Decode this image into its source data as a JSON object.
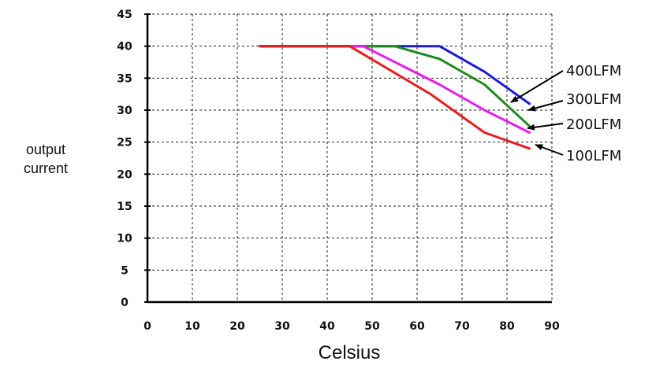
{
  "chart_data": {
    "type": "line",
    "xlabel": "Celsius",
    "ylabel": [
      "output",
      "current"
    ],
    "xlim": [
      0,
      90
    ],
    "ylim": [
      0,
      45
    ],
    "xticks": [
      0,
      10,
      20,
      30,
      40,
      50,
      60,
      70,
      80,
      90
    ],
    "yticks": [
      0,
      5,
      10,
      15,
      20,
      25,
      30,
      35,
      40,
      45
    ],
    "grid": true,
    "series": [
      {
        "name": "400LFM",
        "color": "#1a1adb",
        "x": [
          25,
          65,
          75,
          85
        ],
        "y": [
          40,
          40,
          36,
          31
        ]
      },
      {
        "name": "300LFM",
        "color": "#1f8a1f",
        "x": [
          25,
          55,
          65,
          75,
          85
        ],
        "y": [
          40,
          40,
          38,
          34,
          27.5
        ]
      },
      {
        "name": "200LFM",
        "color": "#e61ee6",
        "x": [
          25,
          48,
          65,
          75,
          85
        ],
        "y": [
          40,
          40,
          34,
          30,
          26.5
        ]
      },
      {
        "name": "100LFM",
        "color": "#e61e1e",
        "x": [
          25,
          45,
          63,
          75,
          85
        ],
        "y": [
          40,
          40,
          32.5,
          26.5,
          24
        ]
      }
    ]
  }
}
